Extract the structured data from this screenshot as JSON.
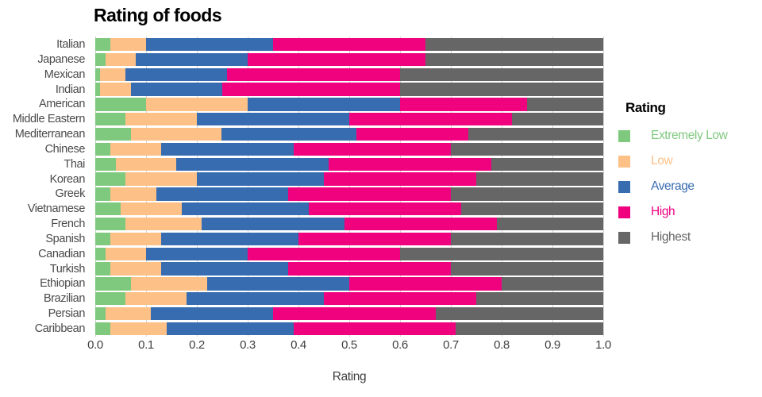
{
  "chart_data": {
    "type": "bar",
    "orientation": "horizontal",
    "stacked": true,
    "title": "Rating of foods",
    "xlabel": "Rating",
    "legend_title": "Rating",
    "legend_position": "right",
    "xlim": [
      0,
      1
    ],
    "x_ticks": [
      "0.0",
      "0.1",
      "0.2",
      "0.3",
      "0.4",
      "0.5",
      "0.6",
      "0.7",
      "0.8",
      "0.9",
      "1.0"
    ],
    "grid": true,
    "categories": [
      "Italian",
      "Japanese",
      "Mexican",
      "Indian",
      "American",
      "Middle Eastern",
      "Mediterranean",
      "Chinese",
      "Thai",
      "Korean",
      "Greek",
      "Vietnamese",
      "French",
      "Spanish",
      "Canadian",
      "Turkish",
      "Ethiopian",
      "Brazilian",
      "Persian",
      "Caribbean"
    ],
    "series": [
      {
        "name": "Extremely Low",
        "color": "#7fc97f",
        "values": [
          0.03,
          0.02,
          0.01,
          0.01,
          0.1,
          0.06,
          0.08,
          0.03,
          0.04,
          0.06,
          0.03,
          0.05,
          0.06,
          0.03,
          0.02,
          0.03,
          0.07,
          0.06,
          0.02,
          0.03
        ]
      },
      {
        "name": "Low",
        "color": "#fdc086",
        "values": [
          0.07,
          0.06,
          0.05,
          0.06,
          0.2,
          0.14,
          0.2,
          0.1,
          0.12,
          0.14,
          0.09,
          0.12,
          0.15,
          0.1,
          0.08,
          0.1,
          0.15,
          0.12,
          0.09,
          0.11
        ]
      },
      {
        "name": "Average",
        "color": "#386cb0",
        "values": [
          0.25,
          0.22,
          0.2,
          0.18,
          0.3,
          0.3,
          0.3,
          0.26,
          0.3,
          0.25,
          0.26,
          0.25,
          0.28,
          0.27,
          0.2,
          0.25,
          0.28,
          0.27,
          0.24,
          0.25
        ]
      },
      {
        "name": "High",
        "color": "#f0027f",
        "values": [
          0.3,
          0.35,
          0.34,
          0.35,
          0.25,
          0.32,
          0.25,
          0.31,
          0.32,
          0.3,
          0.32,
          0.3,
          0.3,
          0.3,
          0.3,
          0.32,
          0.3,
          0.3,
          0.32,
          0.32
        ]
      },
      {
        "name": "Highest",
        "color": "#666666",
        "values": [
          0.35,
          0.35,
          0.4,
          0.4,
          0.15,
          0.18,
          0.3,
          0.3,
          0.22,
          0.25,
          0.3,
          0.28,
          0.21,
          0.3,
          0.4,
          0.3,
          0.2,
          0.25,
          0.33,
          0.29
        ]
      }
    ]
  }
}
